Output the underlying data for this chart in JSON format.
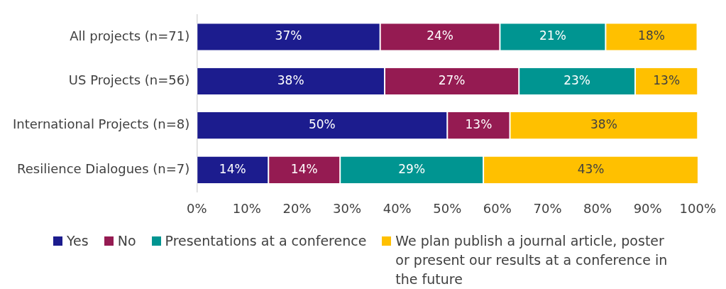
{
  "chart_data": {
    "type": "bar",
    "orientation": "horizontal",
    "stacked": true,
    "categories": [
      "All projects (n=71)",
      "US Projects (n=56)",
      "International Projects (n=8)",
      "Resilience Dialogues (n=7)"
    ],
    "series": [
      {
        "name": "Yes",
        "color": "#1c1c8e",
        "values": [
          36.6,
          37.5,
          50,
          14.3
        ],
        "value_labels": [
          "37%",
          "38%",
          "50%",
          "14%"
        ]
      },
      {
        "name": "No",
        "color": "#951b52",
        "values": [
          23.9,
          26.8,
          12.5,
          14.3
        ],
        "value_labels": [
          "24%",
          "27%",
          "13%",
          "14%"
        ]
      },
      {
        "name": "Presentations at a conference",
        "color": "#009591",
        "values": [
          21.1,
          23.2,
          null,
          28.6
        ],
        "value_labels": [
          "21%",
          "23%",
          null,
          "29%"
        ]
      },
      {
        "name": "We plan publish a journal article, poster or present our results at a conference in the future",
        "color": "#ffc000",
        "values": [
          18.3,
          12.5,
          37.5,
          42.9
        ],
        "value_labels": [
          "18%",
          "13%",
          "38%",
          "43%"
        ]
      }
    ],
    "xlim": [
      0,
      100
    ],
    "xticks": [
      {
        "value": 0,
        "label": "0%"
      },
      {
        "value": 10,
        "label": "10%"
      },
      {
        "value": 20,
        "label": "20%"
      },
      {
        "value": 30,
        "label": "30%"
      },
      {
        "value": 40,
        "label": "40%"
      },
      {
        "value": 50,
        "label": "50%"
      },
      {
        "value": 60,
        "label": "60%"
      },
      {
        "value": 70,
        "label": "70%"
      },
      {
        "value": 80,
        "label": "80%"
      },
      {
        "value": 90,
        "label": "90%"
      },
      {
        "value": 100,
        "label": "100%"
      }
    ],
    "grid": false,
    "legend": "bottom"
  }
}
